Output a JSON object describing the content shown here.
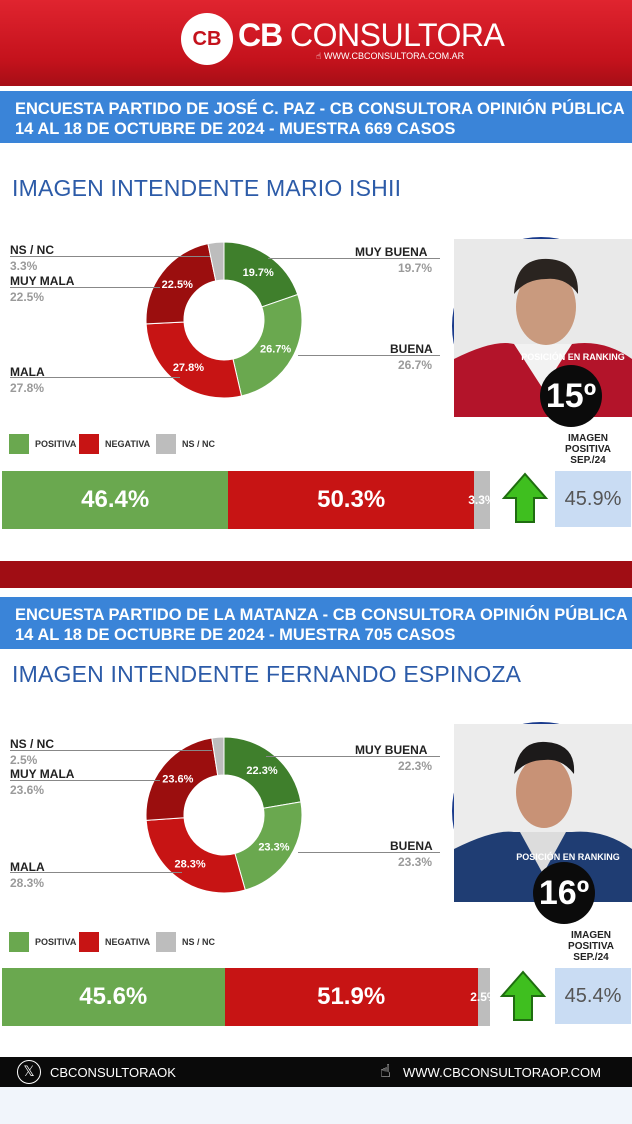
{
  "header": {
    "brand_bold": "CB",
    "brand_light": "CONSULTORA",
    "website_small": "WWW.CBCONSULTORA.COM.AR",
    "logo_mark": "CB"
  },
  "colors": {
    "positive": "#6aa84f",
    "muy_buena": "#3f7f2c",
    "negative": "#c71414",
    "muy_mala": "#9b0e0e",
    "nsnc": "#bdbdbd"
  },
  "surveys": [
    {
      "line1": "ENCUESTA PARTIDO DE JOSÉ C. PAZ - CB CONSULTORA OPINIÓN PÚBLICA",
      "line2": "14 AL 18 DE OCTUBRE DE 2024 - MUESTRA 669 CASOS",
      "title": "IMAGEN INTENDENTE   MARIO ISHII",
      "rank_label": "POSICIÓN EN RANKING",
      "rank": "15º",
      "labels": {
        "ns": "NS / NC",
        "muy_mala": "MUY MALA",
        "mala": "MALA",
        "muy_buena": "MUY BUENA",
        "buena": "BUENA"
      },
      "values_text": {
        "ns": "3.3%",
        "muy_mala": "22.5%",
        "mala": "27.8%",
        "muy_buena": "19.7%",
        "buena": "26.7%"
      },
      "legend": {
        "pos": "POSITIVA",
        "neg": "NEGATIVA",
        "ns": "NS / NC"
      },
      "bar_text": {
        "pos": "46.4%",
        "neg": "50.3%",
        "ns": "3.3%"
      },
      "prev_label": "IMAGEN POSITIVA SEP./24",
      "prev_value": "45.9%"
    },
    {
      "line1": "ENCUESTA PARTIDO DE LA MATANZA - CB CONSULTORA OPINIÓN PÚBLICA",
      "line2": "14 AL 18 DE OCTUBRE DE 2024 - MUESTRA 705 CASOS",
      "title": "IMAGEN INTENDENTE   FERNANDO ESPINOZA",
      "rank_label": "POSICIÓN EN RANKING",
      "rank": "16º",
      "labels": {
        "ns": "NS / NC",
        "muy_mala": "MUY MALA",
        "mala": "MALA",
        "muy_buena": "MUY BUENA",
        "buena": "BUENA"
      },
      "values_text": {
        "ns": "2.5%",
        "muy_mala": "23.6%",
        "mala": "28.3%",
        "muy_buena": "22.3%",
        "buena": "23.3%"
      },
      "legend": {
        "pos": "POSITIVA",
        "neg": "NEGATIVA",
        "ns": "NS / NC"
      },
      "bar_text": {
        "pos": "45.6%",
        "neg": "51.9%",
        "ns": "2.5%"
      },
      "prev_label": "IMAGEN POSITIVA SEP./24",
      "prev_value": "45.4%"
    }
  ],
  "footer": {
    "handle": "CBCONSULTORAOK",
    "website": "WWW.CBCONSULTORAOP.COM"
  },
  "chart_data": [
    {
      "type": "pie",
      "title": "IMAGEN INTENDENTE MARIO ISHII",
      "categories": [
        "MUY BUENA",
        "BUENA",
        "MALA",
        "MUY MALA",
        "NS / NC"
      ],
      "values": [
        19.7,
        26.7,
        27.8,
        22.5,
        3.3
      ]
    },
    {
      "type": "bar",
      "title": "",
      "categories": [
        "POSITIVA",
        "NEGATIVA",
        "NS / NC"
      ],
      "values": [
        46.4,
        50.3,
        3.3
      ],
      "previous_positive": 45.9
    },
    {
      "type": "pie",
      "title": "IMAGEN INTENDENTE FERNANDO ESPINOZA",
      "categories": [
        "MUY BUENA",
        "BUENA",
        "MALA",
        "MUY MALA",
        "NS / NC"
      ],
      "values": [
        22.3,
        23.3,
        28.3,
        23.6,
        2.5
      ]
    },
    {
      "type": "bar",
      "title": "",
      "categories": [
        "POSITIVA",
        "NEGATIVA",
        "NS / NC"
      ],
      "values": [
        45.6,
        51.9,
        2.5
      ],
      "previous_positive": 45.4
    }
  ]
}
